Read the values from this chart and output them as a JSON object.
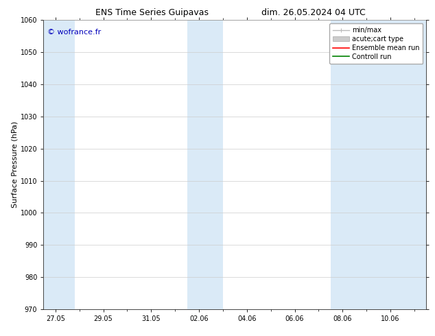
{
  "title_left": "ENS Time Series Guipavas",
  "title_right": "dim. 26.05.2024 04 UTC",
  "ylabel": "Surface Pressure (hPa)",
  "ylim": [
    970,
    1060
  ],
  "yticks": [
    970,
    980,
    990,
    1000,
    1010,
    1020,
    1030,
    1040,
    1050,
    1060
  ],
  "xtick_labels": [
    "27.05",
    "29.05",
    "31.05",
    "02.06",
    "04.06",
    "06.06",
    "08.06",
    "10.06"
  ],
  "xtick_positions": [
    0,
    2,
    4,
    6,
    8,
    10,
    12,
    14
  ],
  "xmin": -0.5,
  "xmax": 15.5,
  "shaded_bands": [
    {
      "x_start": -0.5,
      "x_end": 0.8
    },
    {
      "x_start": 5.5,
      "x_end": 7.0
    },
    {
      "x_start": 11.5,
      "x_end": 15.5
    }
  ],
  "shade_color": "#daeaf7",
  "background_color": "#ffffff",
  "grid_color": "#cccccc",
  "watermark_text": "© wofrance.fr",
  "watermark_color": "#0000bb",
  "legend_entries": [
    {
      "label": "min/max",
      "color": "#bbbbbb",
      "style": "line_with_caps"
    },
    {
      "label": "acute;cart type",
      "color": "#cccccc",
      "style": "filled_bar"
    },
    {
      "label": "Ensemble mean run",
      "color": "#ff0000",
      "style": "line"
    },
    {
      "label": "Controll run",
      "color": "#008000",
      "style": "line"
    }
  ],
  "title_fontsize": 9,
  "tick_fontsize": 7,
  "ylabel_fontsize": 8,
  "legend_fontsize": 7
}
